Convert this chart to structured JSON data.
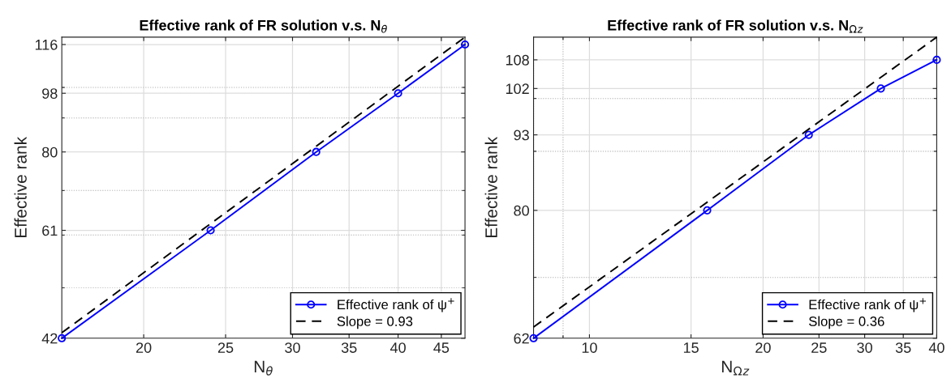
{
  "chart_data": [
    {
      "type": "line",
      "title": "Effective rank of FR solution v.s. N$_{θ}$",
      "xlabel": "N$_{θ}$",
      "ylabel": "Effective rank",
      "log": "xy",
      "grid": true,
      "legend": "bottom right",
      "xlim": [
        16,
        48
      ],
      "ylim": [
        42,
        119
      ],
      "xticks": [
        20,
        25,
        30,
        35,
        40,
        45
      ],
      "yticks": [
        42,
        61,
        80,
        98,
        116
      ],
      "series": [
        {
          "name": "Effective rank of ψ$^{+}$",
          "color": "#0000ff",
          "marker": "circle",
          "line_style": "solid",
          "x": [
            16,
            24,
            32,
            40,
            48
          ],
          "values": [
            42,
            61,
            80,
            98,
            116
          ]
        },
        {
          "name": "Slope = 0.93",
          "color": "#000000",
          "marker": "none",
          "line_style": "dashed",
          "x": [
            16,
            48
          ],
          "values": [
            42.8,
            119
          ]
        }
      ]
    },
    {
      "type": "line",
      "title": "Effective rank of FR solution v.s. N$_{Ω}$$_{z}$",
      "xlabel": "N$_{Ω}$$_{z}$",
      "ylabel": "Effective rank",
      "log": "xy",
      "grid": true,
      "legend": "bottom right",
      "xlim": [
        8,
        40
      ],
      "ylim": [
        62,
        113
      ],
      "xticks": [
        10,
        15,
        20,
        25,
        30,
        35,
        40
      ],
      "yticks": [
        62,
        80,
        93,
        102,
        108
      ],
      "series": [
        {
          "name": "Effective rank of ψ$^{+}$",
          "color": "#0000ff",
          "marker": "circle",
          "line_style": "solid",
          "x": [
            8,
            16,
            24,
            32,
            40
          ],
          "values": [
            62,
            80,
            93,
            102,
            108
          ]
        },
        {
          "name": "Slope = 0.36",
          "color": "#000000",
          "marker": "none",
          "line_style": "dashed",
          "x": [
            8,
            40
          ],
          "values": [
            63.4,
            113
          ]
        }
      ]
    }
  ]
}
